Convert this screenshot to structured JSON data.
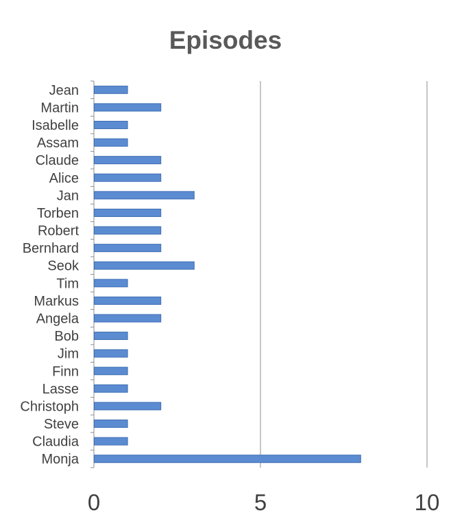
{
  "chart_data": {
    "type": "bar",
    "orientation": "horizontal",
    "title": "Episodes",
    "xlabel": "",
    "ylabel": "",
    "xlim": [
      0,
      10
    ],
    "x_ticks": [
      0,
      5,
      10
    ],
    "grid": "vertical major gridlines",
    "legend": "none",
    "bar_color": "#5b8bd0",
    "bar_edge_color": "#3f6fb5",
    "grid_color": "#8c8c8c",
    "categories": [
      "Jean",
      "Martin",
      "Isabelle",
      "Assam",
      "Claude",
      "Alice",
      "Jan",
      "Torben",
      "Robert",
      "Bernhard",
      "Seok",
      "Tim",
      "Markus",
      "Angela",
      "Bob",
      "Jim",
      "Finn",
      "Lasse",
      "Christoph",
      "Steve",
      "Claudia",
      "Monja"
    ],
    "values": [
      1,
      2,
      1,
      1,
      2,
      2,
      3,
      2,
      2,
      2,
      3,
      1,
      2,
      2,
      1,
      1,
      1,
      1,
      2,
      1,
      1,
      8
    ]
  }
}
